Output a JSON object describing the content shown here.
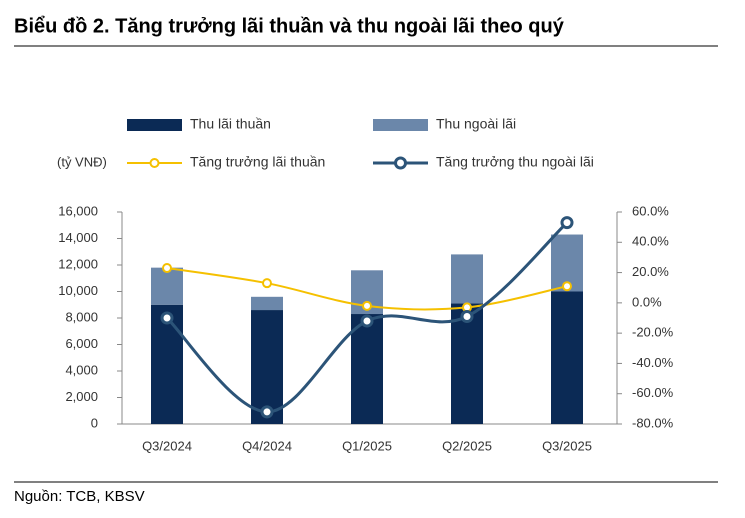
{
  "chart_data": {
    "type": "bar",
    "stacked": true,
    "title": "Biểu đồ 2. Tăng trưởng lãi thuần và thu ngoài lãi theo quý",
    "y_unit": "(tỷ VNĐ)",
    "source": "Nguồn: TCB, KBSV",
    "categories": [
      "Q3/2024",
      "Q4/2024",
      "Q1/2025",
      "Q2/2025",
      "Q3/2025"
    ],
    "series": [
      {
        "name": "Thu lãi thuần",
        "type": "bar",
        "color": "#0b2a55",
        "values": [
          9000,
          8600,
          8300,
          9100,
          10000
        ]
      },
      {
        "name": "Thu ngoài lãi",
        "type": "bar",
        "color": "#6b87aa",
        "values": [
          2800,
          1000,
          3300,
          3700,
          4300
        ]
      },
      {
        "name": "Tăng trưởng lãi thuần",
        "type": "line",
        "axis": "y2",
        "color": "#f5c000",
        "values": [
          23,
          13,
          -2,
          -3,
          11
        ]
      },
      {
        "name": "Tăng trưởng thu ngoài lãi",
        "type": "line",
        "axis": "y2",
        "color": "#2c5478",
        "values": [
          -10,
          -72,
          -12,
          -9,
          53
        ]
      }
    ],
    "ylim": [
      0,
      16000
    ],
    "yticks": [
      0,
      {
        "value": 2000,
        "label": "2,000"
      },
      {
        "value": 4000,
        "label": "4,000"
      },
      {
        "value": 6000,
        "label": "6,000"
      },
      {
        "value": 8000,
        "label": "8,000"
      },
      {
        "value": 10000,
        "label": "10,000"
      },
      {
        "value": 12000,
        "label": "12,000"
      },
      {
        "value": 14000,
        "label": "14,000"
      },
      {
        "value": 16000,
        "label": "16,000"
      }
    ],
    "y2lim": [
      -80,
      60
    ],
    "y2ticks": [
      {
        "value": -80,
        "label": "-80.0%"
      },
      {
        "value": -60,
        "label": "-60.0%"
      },
      {
        "value": -40,
        "label": "-40.0%"
      },
      {
        "value": -20,
        "label": "-20.0%"
      },
      {
        "value": 0,
        "label": "0.0%"
      },
      {
        "value": 20,
        "label": "20.0%"
      },
      {
        "value": 40,
        "label": "40.0%"
      },
      {
        "value": 60,
        "label": "60.0%"
      }
    ]
  }
}
